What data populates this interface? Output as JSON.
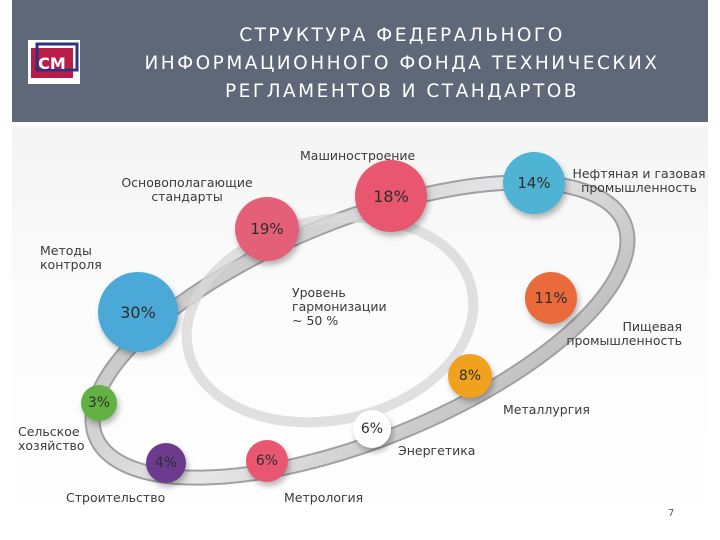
{
  "slide": {
    "title_lines": [
      "СТРУКТУРА ФЕДЕРАЛЬНОГО",
      "ИНФОРМАЦИОННОГО ФОНДА ТЕХНИЧЕСКИХ",
      "РЕГЛАМЕНТОВ И СТАНДАРТОВ"
    ],
    "logo_text": "СМ",
    "page_number": "7"
  },
  "segments": [
    {
      "id": "machine",
      "label": "Машиностроение",
      "percent": "18%",
      "color": "#e8566f"
    },
    {
      "id": "oil",
      "label": "Нефтяная и газовая промышленность",
      "percent": "14%",
      "color": "#4fb3d4"
    },
    {
      "id": "base",
      "label": "Основополагающие стандарты",
      "percent": "19%",
      "color": "#e45f78"
    },
    {
      "id": "methods",
      "label": "Методы контроля",
      "percent": "30%",
      "color": "#4aa9d6"
    },
    {
      "id": "food",
      "label": "Пищевая промышленность",
      "percent": "11%",
      "color": "#ea6a3c"
    },
    {
      "id": "metal",
      "label": "Металлургия",
      "percent": "8%",
      "color": "#f0a21e"
    },
    {
      "id": "agri",
      "label": "Сельское хозяйство",
      "percent": "3%",
      "color": "#63b043"
    },
    {
      "id": "energy",
      "label": "Энергетика",
      "percent": "6%",
      "color": "#ffffff"
    },
    {
      "id": "build",
      "label": "Строительство",
      "percent": "4%",
      "color": "#6c3b8e"
    },
    {
      "id": "metro",
      "label": "Метрология",
      "percent": "6%",
      "color": "#e8566f"
    }
  ],
  "center_text": [
    "Уровень",
    "гармонизации",
    "~ 50 %"
  ]
}
